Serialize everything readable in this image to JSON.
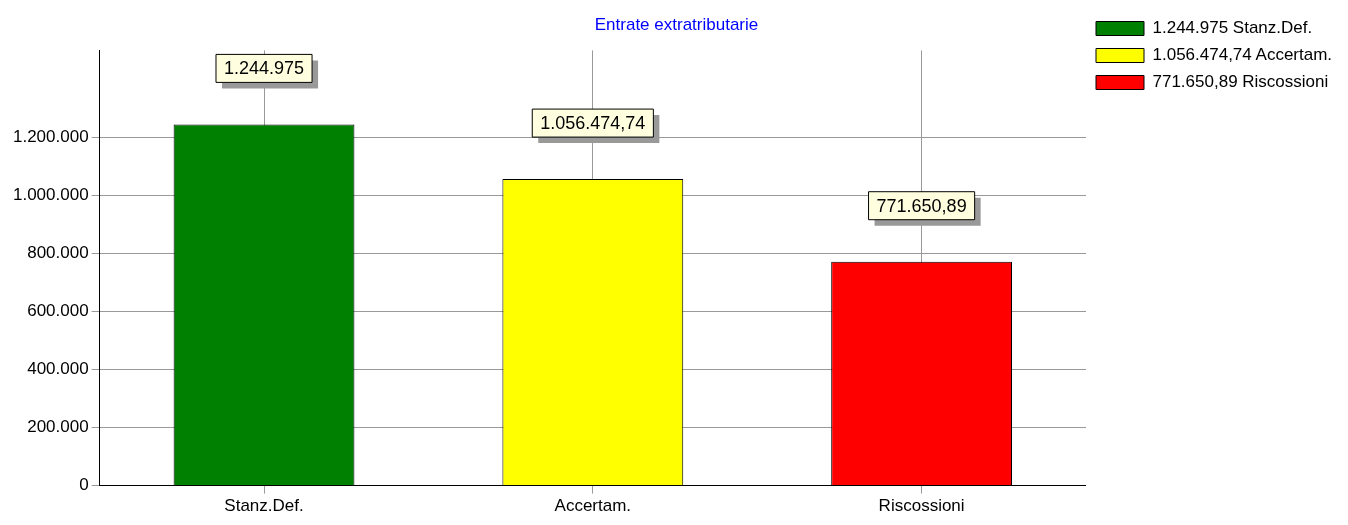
{
  "chart_data": {
    "type": "bar",
    "title": "Entrate extratributarie",
    "categories": [
      "Stanz.Def.",
      "Accertam.",
      "Riscossioni"
    ],
    "series": [
      {
        "name": "1.244.975 Stanz.Def.",
        "color": "#008000",
        "values": [
          1244975,
          null,
          null
        ],
        "value_labels": [
          "1.244.975",
          null,
          null
        ]
      },
      {
        "name": "1.056.474,74 Accertam.",
        "color": "#ffff00",
        "values": [
          null,
          1056474.74,
          null
        ],
        "value_labels": [
          null,
          "1.056.474,74",
          null
        ]
      },
      {
        "name": "771.650,89 Riscossioni",
        "color": "#ff0000",
        "values": [
          null,
          null,
          771650.89
        ],
        "value_labels": [
          null,
          null,
          "771.650,89"
        ]
      }
    ],
    "ylim": [
      0,
      1500000
    ],
    "yticks": [
      {
        "value": 0,
        "label": "0"
      },
      {
        "value": 200000,
        "label": "200.000"
      },
      {
        "value": 400000,
        "label": "400.000"
      },
      {
        "value": 600000,
        "label": "600.000"
      },
      {
        "value": 800000,
        "label": "800.000"
      },
      {
        "value": 1000000,
        "label": "1.000.000"
      },
      {
        "value": 1200000,
        "label": "1.200.000"
      }
    ],
    "grid": true,
    "legend": "top right"
  }
}
